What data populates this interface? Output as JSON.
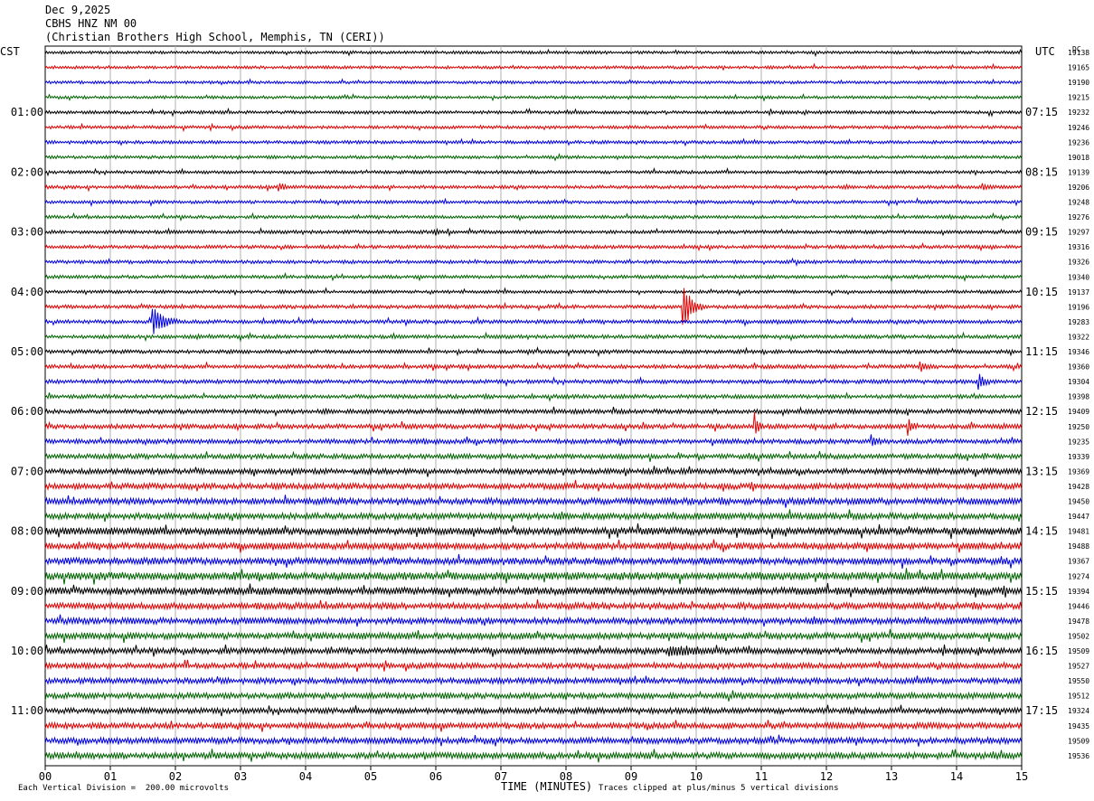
{
  "header": {
    "date": "Dec 9,2025",
    "station": "CBHS HNZ NM 00",
    "location": "(Christian Brothers High School, Memphis, TN (CERI))"
  },
  "left_tz": "CST",
  "right_tz": "UTC",
  "dc_label": "DC",
  "footer": {
    "scale_note": "Each Vertical Division =  200.00 microvolts",
    "xlabel": "TIME (MINUTES)",
    "clip_note": "Traces clipped at plus/minus 5 vertical divisions"
  },
  "colors": {
    "cycle": [
      "#000000",
      "#e00000",
      "#0000e0",
      "#006400"
    ],
    "grid": "#b0b0b0"
  },
  "chart_data": {
    "type": "line",
    "title": "CBHS HNZ NM 00",
    "xlabel": "TIME (MINUTES)",
    "ylabel": "",
    "xlim": [
      0,
      15
    ],
    "x_ticks": [
      "00",
      "01",
      "02",
      "03",
      "04",
      "05",
      "06",
      "07",
      "08",
      "09",
      "10",
      "11",
      "12",
      "13",
      "14",
      "15"
    ],
    "left_hour_labels": [
      "01:00",
      "02:00",
      "03:00",
      "04:00",
      "05:00",
      "06:00",
      "07:00",
      "08:00",
      "09:00",
      "10:00",
      "11:00"
    ],
    "right_hour_labels": [
      "07:15",
      "08:15",
      "09:15",
      "10:15",
      "11:15",
      "12:15",
      "13:15",
      "14:15",
      "15:15",
      "16:15",
      "17:15"
    ],
    "trace_count": 48,
    "dc_values": [
      19138,
      19165,
      19190,
      19215,
      19232,
      19246,
      19236,
      19018,
      19139,
      19206,
      19248,
      19276,
      19297,
      19316,
      19326,
      19340,
      19137,
      19196,
      19283,
      19322,
      19346,
      19360,
      19304,
      19398,
      19409,
      19250,
      19235,
      19339,
      19369,
      19428,
      19450,
      19447,
      19481,
      19488,
      19367,
      19274,
      19394,
      19446,
      19478,
      19502,
      19509,
      19527,
      19550,
      19512,
      19324,
      19435,
      19509,
      19536
    ],
    "noise_levels": [
      1.2,
      1.2,
      1.2,
      1.2,
      1.3,
      1.3,
      1.3,
      1.3,
      1.3,
      1.4,
      1.3,
      1.3,
      1.4,
      1.4,
      1.4,
      1.4,
      1.3,
      1.5,
      1.5,
      1.5,
      1.5,
      1.6,
      1.6,
      1.6,
      1.8,
      1.9,
      1.9,
      2.0,
      2.2,
      2.4,
      2.6,
      2.6,
      2.9,
      2.7,
      2.8,
      3.2,
      3.0,
      2.6,
      2.6,
      2.6,
      2.4,
      2.3,
      2.3,
      2.4,
      2.3,
      2.4,
      2.5,
      2.6
    ],
    "events": [
      {
        "trace": 18,
        "minute": 1.65,
        "amplitude": 18,
        "duration_min": 0.4
      },
      {
        "trace": 17,
        "minute": 9.8,
        "amplitude": 30,
        "duration_min": 0.3
      },
      {
        "trace": 9,
        "minute": 3.6,
        "amplitude": 5,
        "duration_min": 0.15
      },
      {
        "trace": 9,
        "minute": 14.4,
        "amplitude": 4,
        "duration_min": 0.15
      },
      {
        "trace": 21,
        "minute": 13.45,
        "amplitude": 6,
        "duration_min": 0.2
      },
      {
        "trace": 22,
        "minute": 14.35,
        "amplitude": 9,
        "duration_min": 0.2
      },
      {
        "trace": 25,
        "minute": 10.9,
        "amplitude": 14,
        "duration_min": 0.15
      },
      {
        "trace": 25,
        "minute": 13.25,
        "amplitude": 10,
        "duration_min": 0.15
      },
      {
        "trace": 26,
        "minute": 12.7,
        "amplitude": 6,
        "duration_min": 0.15
      },
      {
        "trace": 12,
        "minute": 6.0,
        "amplitude": 4,
        "duration_min": 0.1
      },
      {
        "trace": 40,
        "minute": 9.6,
        "amplitude": 5,
        "duration_min": 1.2
      }
    ]
  }
}
